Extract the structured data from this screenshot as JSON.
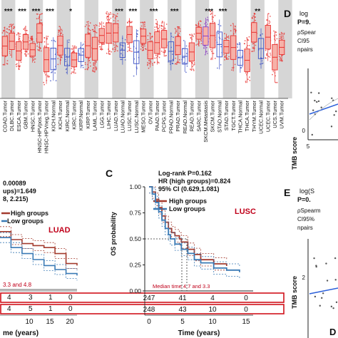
{
  "panels": {
    "C_letter": "C",
    "D_letter": "D",
    "E_letter": "E",
    "D_corner": "D"
  },
  "boxplot": {
    "significance": [
      "***",
      "***",
      "***",
      "***",
      "*",
      "***",
      "***",
      "***",
      "***",
      "***",
      "***",
      "**"
    ],
    "x_labels": [
      "COAD.Tumor",
      "DLBC.Tumor",
      "ESCA.Tumor",
      "GBM.Tumor",
      "HNSC.Tumor",
      "HNSC-HPVpos.Tumor",
      "HNSC-HPVneg.Tumor",
      "KICH.Normal",
      "KICH.Tumor",
      "KIRC.Normal",
      "KIRC.Tumor",
      "KIRP.Normal",
      "KIRP.Tumor",
      "LAML.Tumor",
      "LGG.Tumor",
      "LIHC.Tumor",
      "LUAD.Tumor",
      "LUAD.Normal",
      "LUSC.Tumor",
      "LUSC.Normal",
      "MESO.Tumor",
      "OV.Tumor",
      "PAAD.Tumor",
      "PCPG.Tumor",
      "PRAD.Normal",
      "PRAD.Tumor",
      "READ.Normal",
      "READ.Tumor",
      "SARC.Tumor",
      "SKCM.Metastasis",
      "SKCM.Tumor",
      "STAD.Normal",
      "STAD.Tumor",
      "TGCT.Tumor",
      "THCA.Normal",
      "THCA.Tumor",
      "THYM.Tumor",
      "UCEC.Normal",
      "UCEC.Tumor",
      "UCS.Tumor",
      "UVM.Tumor"
    ],
    "highlight_labels": [
      "LUAD.Tumor",
      "LUAD.Normal",
      "LUSC.Tumor",
      "LUSC.Normal"
    ],
    "colors": {
      "tumor": "#e8312f",
      "normal": "#3a4fc4",
      "metastasis": "#8b3fc4",
      "band": "#d6d6d6",
      "highlight": "#c0001a"
    }
  },
  "panel_B": {
    "stat_lines": [
      "0.00089",
      "ups)=1.649",
      "8, 2.215)"
    ],
    "legend": [
      "High groups",
      "Low groups"
    ],
    "tag": "LUAD",
    "median_text": "3.3 and 4.8",
    "risk_rows": [
      [
        "4",
        "3",
        "1",
        "0"
      ],
      [
        "4",
        "5",
        "1",
        "0"
      ]
    ],
    "time_ticks": [
      "10",
      "15",
      "20"
    ],
    "xlabel": "me (years)"
  },
  "panel_C": {
    "stat_lines": [
      "Log-rank P=0.162",
      "HR (high groups)=0.824",
      "95% CI (0.629,1.081)"
    ],
    "legend": [
      "High groups",
      "Low groups"
    ],
    "tag": "LUSC",
    "ylabel": "OS probability",
    "y_ticks": [
      "1.00",
      "0.75",
      "0.50",
      "0.25",
      "0.00"
    ],
    "median_text": "Median time 4.7 and 3.3",
    "risk_rows": [
      [
        "247",
        "41",
        "4",
        "0"
      ],
      [
        "248",
        "43",
        "10",
        "0"
      ]
    ],
    "x_ticks": [
      "0",
      "5",
      "10",
      "15"
    ],
    "xlabel": "Time (years)"
  },
  "panel_D": {
    "stat_lines": [
      "log",
      "P=9.",
      "ρSpear",
      "CI95",
      "npairs"
    ],
    "ylabel": "TMB score",
    "y_tick": "0",
    "x_tick": "5"
  },
  "panel_E": {
    "stat_lines": [
      "log(S",
      "P=0.",
      "ρSpearm",
      "CI95%",
      "npairs"
    ],
    "ylabel": "TMB score",
    "y_tick": "2"
  },
  "chart_data": [
    {
      "type": "line",
      "title": "",
      "xlabel": "Time (years)",
      "ylabel": "OS probability",
      "x_ticks": [
        0,
        5,
        10,
        15
      ],
      "ylim": [
        0,
        1
      ],
      "series": [
        {
          "name": "High groups",
          "x": [
            0,
            0.5,
            1,
            1.5,
            2,
            2.5,
            3,
            3.5,
            4,
            4.7,
            5,
            6,
            7,
            8,
            10,
            12
          ],
          "values": [
            1.0,
            0.95,
            0.88,
            0.8,
            0.72,
            0.66,
            0.6,
            0.56,
            0.53,
            0.5,
            0.47,
            0.4,
            0.35,
            0.3,
            0.26,
            0.24
          ]
        },
        {
          "name": "Low groups",
          "x": [
            0,
            0.5,
            1,
            1.5,
            2,
            2.5,
            3,
            3.3,
            4,
            5,
            6,
            7,
            8,
            10,
            12,
            14
          ],
          "values": [
            1.0,
            0.93,
            0.85,
            0.76,
            0.68,
            0.6,
            0.54,
            0.5,
            0.45,
            0.4,
            0.36,
            0.3,
            0.27,
            0.22,
            0.2,
            0.18
          ]
        }
      ]
    },
    {
      "type": "line",
      "title": "",
      "xlabel": "me (years)",
      "series": [
        {
          "name": "High groups",
          "x": [
            0,
            3,
            6,
            9,
            12,
            15,
            18,
            21
          ],
          "values": [
            0.58,
            0.5,
            0.46,
            0.44,
            0.42,
            0.36,
            0.26,
            0.24
          ]
        },
        {
          "name": "Low groups",
          "x": [
            0,
            3,
            6,
            9,
            12,
            15,
            18,
            21
          ],
          "values": [
            0.52,
            0.42,
            0.36,
            0.3,
            0.24,
            0.2,
            0.16,
            0.14
          ]
        }
      ]
    }
  ]
}
